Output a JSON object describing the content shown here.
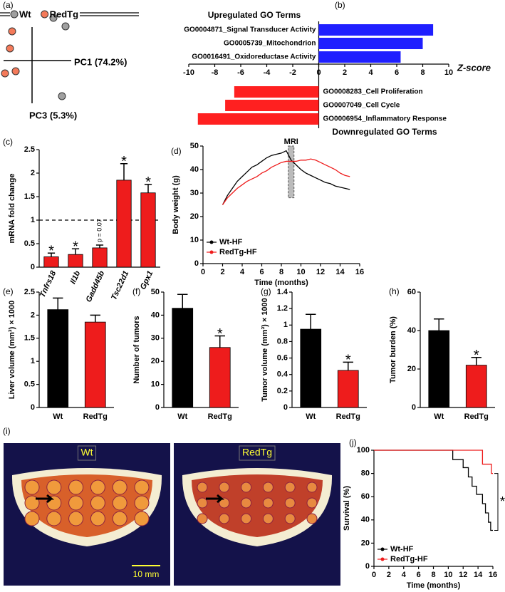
{
  "chart_data": [
    {
      "type": "scatter",
      "panel": "(a)",
      "xlabel": "PC1 (74.2%)",
      "ylabel": "PC3 (5.3%)",
      "xlim": [
        -0.8,
        1.1
      ],
      "ylim": [
        -1.2,
        1.5
      ],
      "legend": "top",
      "series": [
        {
          "name": "Wt",
          "color": "#a0a0a0",
          "x": [
            0.6,
            0.94,
            0.84
          ],
          "values": [
            1.2,
            0.96,
            -1.0
          ]
        },
        {
          "name": "RedTg",
          "color": "#f47a5a",
          "x": [
            -0.56,
            -0.62,
            -0.76,
            -0.46
          ],
          "values": [
            0.82,
            0.34,
            -0.36,
            -0.3
          ]
        }
      ]
    },
    {
      "type": "hbar",
      "panel": "(b)",
      "xlabel": "Z-score",
      "xlim": [
        -10,
        10
      ],
      "xticks": [
        -10,
        -8,
        -6,
        -4,
        -2,
        0,
        2,
        4,
        6,
        8,
        10
      ],
      "groups": [
        {
          "title": "Upregulated GO Terms",
          "color": "#1f1fff",
          "categories": [
            "GO0004871_Signal Transducer Activity",
            "GO0005739_Mitochondrion",
            "GO0016491_Oxidoreductase Activity"
          ],
          "values": [
            8.8,
            8.0,
            6.3
          ]
        },
        {
          "title": "Downregulated GO Terms",
          "color": "#ff2020",
          "categories": [
            "GO0008283_Cell Proliferation",
            "GO0007049_Cell Cycle",
            "GO0006954_Inflammatory Response"
          ],
          "values": [
            -6.5,
            -7.2,
            -9.3
          ]
        }
      ]
    },
    {
      "type": "bar",
      "panel": "(c)",
      "ylabel": "mRNA fold change",
      "categories": [
        "Tnfrs18",
        "Il1b",
        "Gadd45b",
        "Tsc22d1",
        "Gpx1"
      ],
      "values": [
        0.22,
        0.27,
        0.41,
        1.85,
        1.58
      ],
      "errors": [
        0.08,
        0.12,
        0.06,
        0.35,
        0.18
      ],
      "color": "#ee1c1c",
      "annotations": [
        "*",
        "*",
        "p = 0.07",
        "*",
        "*"
      ],
      "refline": 1,
      "ylim": [
        0,
        2.5
      ],
      "yticks": [
        0,
        0.5,
        1,
        1.5,
        2,
        2.5
      ]
    },
    {
      "type": "line",
      "panel": "(d)",
      "xlabel": "Time (months)",
      "ylabel": "Body weight (g)",
      "legend": "lower left",
      "annotation": {
        "label": "MRI",
        "x": 9
      },
      "x": [
        2,
        2.5,
        3,
        3.5,
        4,
        4.5,
        5,
        5.5,
        6,
        6.5,
        7,
        7.5,
        8,
        8.5,
        9,
        9.5,
        10,
        10.5,
        11,
        11.5,
        12,
        12.5,
        13,
        13.5,
        14,
        14.5,
        15
      ],
      "series": [
        {
          "name": "Wt-HF",
          "color": "#000000",
          "values": [
            25,
            29,
            32,
            35,
            37,
            39,
            41,
            42,
            43.5,
            45,
            46,
            46.5,
            47,
            48,
            44,
            42,
            40,
            38.5,
            37.5,
            36.5,
            35.5,
            34.5,
            34,
            33,
            32.5,
            32,
            31.5
          ]
        },
        {
          "name": "RedTg-HF",
          "color": "#ee1c1c",
          "values": [
            25,
            28,
            30,
            32,
            33.5,
            35,
            36,
            37,
            38.5,
            39.5,
            41,
            42,
            43,
            43.5,
            43.5,
            43.5,
            44,
            44,
            44.5,
            44,
            43,
            42,
            41,
            40,
            38.5,
            37.5,
            37
          ]
        }
      ],
      "xlim": [
        0,
        16
      ],
      "xticks": [
        0,
        2,
        4,
        6,
        8,
        10,
        12,
        14,
        16
      ],
      "ylim": [
        0,
        50
      ],
      "yticks": [
        0,
        10,
        20,
        30,
        40,
        50
      ]
    },
    {
      "type": "bar",
      "panel": "(e)",
      "ylabel": "Liver volume (mm³) × 1000",
      "categories": [
        "Wt",
        "RedTg"
      ],
      "values": [
        2.12,
        1.85
      ],
      "errors": [
        0.25,
        0.15
      ],
      "colors": [
        "#000000",
        "#ee1c1c"
      ],
      "ylim": [
        0,
        2.5
      ],
      "yticks": [
        0,
        0.5,
        1,
        1.5,
        2,
        2.5
      ]
    },
    {
      "type": "bar",
      "panel": "(f)",
      "ylabel": "Number of tumors",
      "categories": [
        "Wt",
        "RedTg"
      ],
      "values": [
        43,
        26
      ],
      "errors": [
        6,
        5
      ],
      "colors": [
        "#000000",
        "#ee1c1c"
      ],
      "annotations": [
        null,
        "*"
      ],
      "ylim": [
        0,
        50
      ],
      "yticks": [
        0,
        10,
        20,
        30,
        40,
        50
      ]
    },
    {
      "type": "bar",
      "panel": "(g)",
      "ylabel": "Tumor volume (mm³) × 1000",
      "categories": [
        "Wt",
        "RedTg"
      ],
      "values": [
        0.95,
        0.45
      ],
      "errors": [
        0.18,
        0.1
      ],
      "colors": [
        "#000000",
        "#ee1c1c"
      ],
      "annotations": [
        null,
        "*"
      ],
      "ylim": [
        0,
        1.4
      ],
      "yticks": [
        0,
        0.2,
        0.4,
        0.6,
        0.8,
        1,
        1.2,
        1.4
      ]
    },
    {
      "type": "bar",
      "panel": "(h)",
      "ylabel": "Tumor burden (%)",
      "categories": [
        "Wt",
        "RedTg"
      ],
      "values": [
        40,
        22
      ],
      "errors": [
        6,
        4
      ],
      "colors": [
        "#000000",
        "#ee1c1c"
      ],
      "annotations": [
        null,
        "*"
      ],
      "ylim": [
        0,
        60
      ],
      "yticks": [
        0,
        20,
        40,
        60
      ]
    },
    {
      "type": "image",
      "panel": "(i)",
      "labels": [
        "Wt",
        "RedTg"
      ],
      "scale_bar": "10 mm"
    },
    {
      "type": "step",
      "panel": "(j)",
      "xlabel": "Time (months)",
      "ylabel": "Survival (%)",
      "legend": "lower left",
      "annotation": "*",
      "series": [
        {
          "name": "Wt-HF",
          "color": "#000000",
          "x": [
            0,
            10.6,
            12,
            12.7,
            13.2,
            13.8,
            14.6,
            15,
            15.4,
            15.7,
            16
          ],
          "values": [
            100,
            92,
            85,
            77,
            69,
            62,
            54,
            46,
            38,
            31,
            31
          ]
        },
        {
          "name": "RedTg-HF",
          "color": "#ee1c1c",
          "x": [
            0,
            14.6,
            15.8,
            16
          ],
          "values": [
            100,
            88,
            80,
            80
          ]
        }
      ],
      "xlim": [
        0,
        16
      ],
      "xticks": [
        0,
        2,
        4,
        6,
        8,
        10,
        12,
        14,
        16
      ],
      "ylim": [
        0,
        100
      ],
      "yticks": [
        0,
        20,
        40,
        60,
        80,
        100
      ]
    }
  ]
}
